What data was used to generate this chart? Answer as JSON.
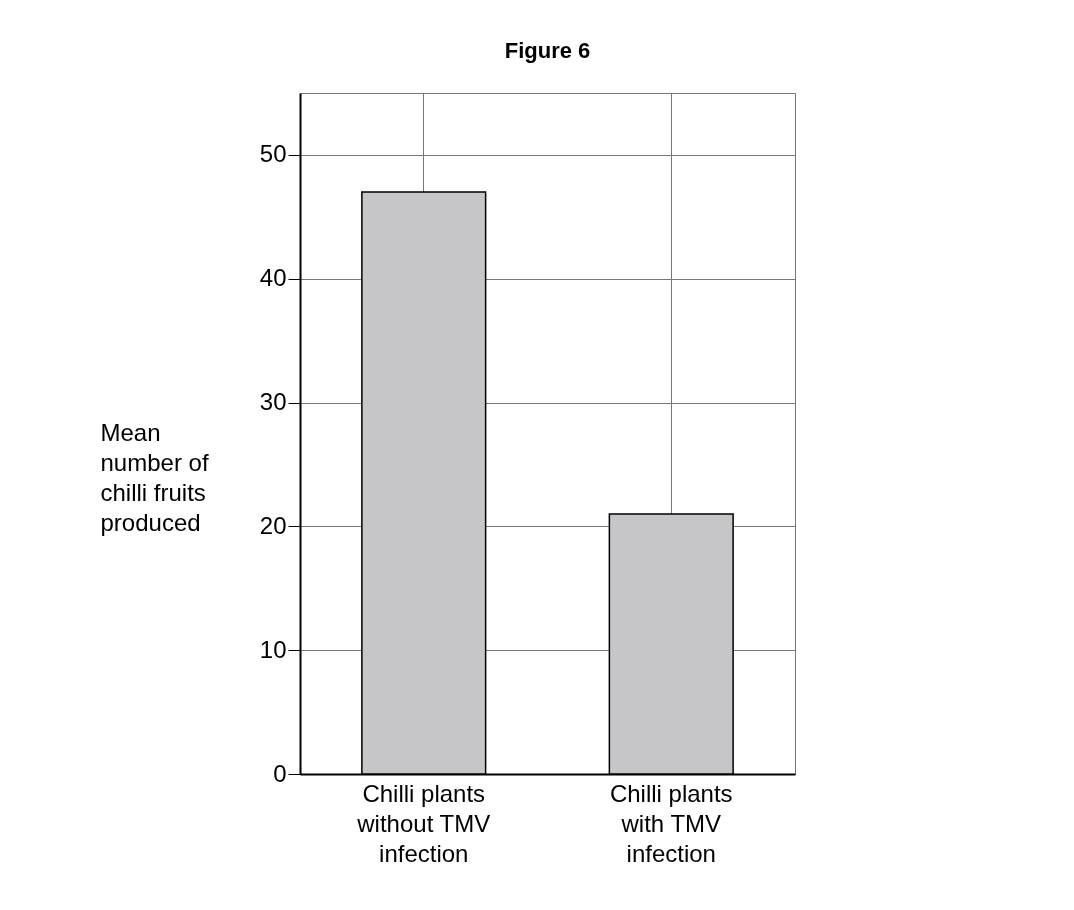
{
  "chart_data": {
    "type": "bar",
    "title": "Figure 6",
    "ylabel": "Mean\nnumber of\nchilli fruits\nproduced",
    "categories": [
      "Chilli plants\nwithout TMV\ninfection",
      "Chilli plants\nwith TMV\ninfection"
    ],
    "values": [
      47,
      21
    ],
    "color": "#c6c6c8",
    "ylim": [
      0,
      55
    ],
    "yticks": [
      0,
      10,
      20,
      30,
      40,
      50
    ],
    "grid": true
  }
}
